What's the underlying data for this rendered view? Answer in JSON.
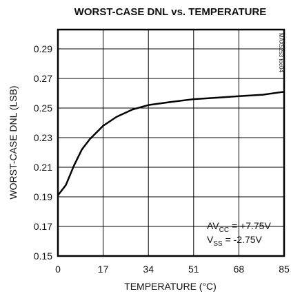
{
  "chart_data": {
    "type": "line",
    "title": "WORST-CASE DNL vs. TEMPERATURE",
    "xlabel": "TEMPERATURE (°C)",
    "ylabel": "WORST-CASE DNL (LSB)",
    "side_note": "MAX5253 toc04",
    "annotations": [
      {
        "main": "AV",
        "sub": "CC",
        "rest": " = +7.75V"
      },
      {
        "main": "V",
        "sub": "SS",
        "rest": " = -2.75V"
      }
    ],
    "x": [
      0,
      3,
      6,
      9,
      12,
      17,
      22,
      28,
      34,
      42,
      51,
      60,
      68,
      77,
      85
    ],
    "series": [
      {
        "name": "DNL",
        "color": "#000000",
        "values": [
          0.191,
          0.198,
          0.211,
          0.222,
          0.229,
          0.238,
          0.244,
          0.249,
          0.252,
          0.254,
          0.256,
          0.257,
          0.258,
          0.259,
          0.261
        ]
      }
    ],
    "xlim": [
      0,
      85
    ],
    "xticks": [
      0,
      17,
      34,
      51,
      68,
      85
    ],
    "ylim": [
      0.15,
      0.303
    ],
    "yticks": [
      0.15,
      0.17,
      0.19,
      0.21,
      0.23,
      0.25,
      0.27,
      0.29
    ],
    "grid": true
  }
}
